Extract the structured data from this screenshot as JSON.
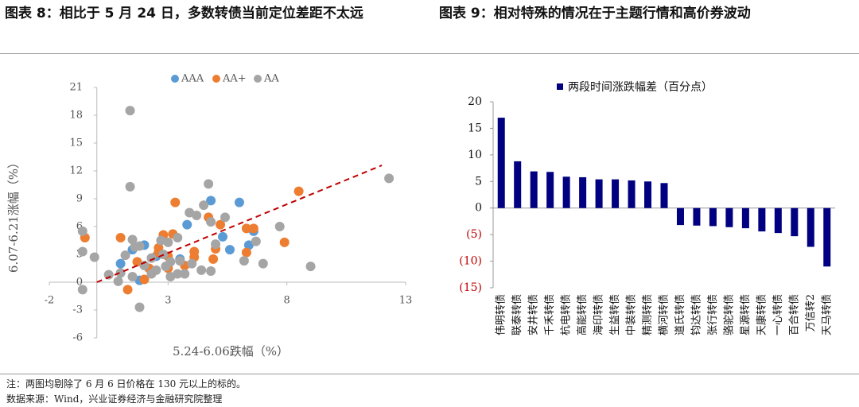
{
  "chart_data": [
    {
      "type": "scatter",
      "title": "图表 8：相比于 5 月 24 日，多数转债当前定位差距不太远",
      "x_label": "5.24-6.06跌幅（%）",
      "y_label": "6.07-6.21涨幅（%）",
      "xlim": [
        -2,
        13
      ],
      "xticks": [
        -2,
        3,
        8,
        13
      ],
      "ylim": [
        -6,
        21
      ],
      "yticks": [
        -6,
        -3,
        0,
        3,
        6,
        9,
        12,
        15,
        18,
        21
      ],
      "legend": "top",
      "series": [
        {
          "name": "AAA",
          "color": "#5b9bd5",
          "x": [
            4.8,
            6.0,
            3.8,
            5.3,
            6.6,
            6.4,
            2.0,
            1.0,
            1.8,
            3.5,
            2.5,
            1.5,
            5.6
          ],
          "values": [
            8.8,
            8.6,
            6.2,
            4.9,
            5.5,
            4.0,
            4.0,
            2.0,
            0.2,
            2.5,
            2.8,
            3.5,
            3.5
          ]
        },
        {
          "name": "AA+",
          "color": "#ed7d31",
          "x": [
            8.5,
            3.3,
            4.7,
            5.2,
            6.3,
            6.6,
            7.9,
            3.2,
            2.8,
            1.0,
            -0.5,
            4.1,
            5.0,
            6.3,
            2.6,
            3.0,
            4.1,
            4.9,
            2.2,
            1.3,
            2.0,
            3.0,
            1.7,
            3.7,
            2.6
          ],
          "values": [
            9.8,
            8.6,
            7.0,
            6.2,
            5.8,
            5.8,
            4.3,
            5.2,
            5.1,
            4.8,
            4.8,
            3.3,
            3.6,
            3.2,
            3.2,
            2.8,
            2.7,
            2.5,
            1.5,
            -0.8,
            0.3,
            1.5,
            2.2,
            1.8,
            3.7
          ]
        },
        {
          "name": "AA",
          "color": "#a5a5a5",
          "x": [
            1.4,
            12.3,
            1.4,
            4.7,
            4.5,
            3.9,
            4.2,
            4.8,
            5.4,
            7.7,
            6.7,
            -0.6,
            1.5,
            1.8,
            2.7,
            3.0,
            3.4,
            -0.1,
            -0.6,
            1.6,
            2.3,
            2.8,
            3.1,
            3.5,
            4.0,
            4.4,
            4.8,
            5.0,
            6.2,
            7.0,
            9.0,
            1.0,
            1.5,
            2.0,
            2.5,
            3.1,
            3.4,
            0.9,
            1.8,
            -0.6,
            0.5,
            2.3,
            2.9,
            3.7,
            1.2
          ],
          "values": [
            18.5,
            11.2,
            10.3,
            10.6,
            8.3,
            7.5,
            7.2,
            6.5,
            7.0,
            6.0,
            4.4,
            5.5,
            4.6,
            3.9,
            4.5,
            4.3,
            4.8,
            2.7,
            3.3,
            3.8,
            2.6,
            3.0,
            2.2,
            2.3,
            2.0,
            1.3,
            1.2,
            4.1,
            2.3,
            2.0,
            1.7,
            1.0,
            0.6,
            1.8,
            1.3,
            0.6,
            0.9,
            0.1,
            -2.7,
            -0.8,
            0.8,
            0.9,
            1.7,
            0.9,
            2.9
          ]
        }
      ],
      "trendline": {
        "color": "#c00000",
        "x": [
          0,
          12
        ],
        "values": [
          0,
          12.6
        ]
      }
    },
    {
      "type": "bar",
      "title": "图表 9：相对特殊的情况在于主题行情和高价券波动",
      "legend": "top",
      "categories": [
        "伟明转债",
        "联泰转债",
        "安井转债",
        "千禾转债",
        "杭电转债",
        "高能转债",
        "海印转债",
        "生益转债",
        "中装转债",
        "精测转债",
        "横河转债",
        "道氏转债",
        "钧达转债",
        "张行转债",
        "骆驼转债",
        "星源转债",
        "天康转债",
        "一心转债",
        "百合转债",
        "万信转2",
        "天马转债"
      ],
      "series": [
        {
          "name": "两段时间涨跌幅差（百分点）",
          "color": "#000080",
          "values": [
            17.0,
            8.8,
            6.9,
            6.8,
            5.9,
            5.8,
            5.4,
            5.4,
            5.2,
            5.0,
            4.7,
            -3.2,
            -3.3,
            -3.4,
            -3.6,
            -3.8,
            -4.4,
            -4.7,
            -5.3,
            -7.3,
            -11.0
          ]
        }
      ],
      "ylim": [
        -15,
        20
      ],
      "yticks": [
        {
          "value": -15,
          "label": "(15)"
        },
        {
          "value": -10,
          "label": "(10)"
        },
        {
          "value": -5,
          "label": "(5)"
        },
        0,
        5,
        10,
        15,
        20
      ],
      "negative_tick_color": "#c00000"
    }
  ],
  "note": "注：两图均剔除了 6 月 6 日价格在 130 元以上的标的。",
  "source": "数据来源：Wind，兴业证券经济与金融研究院整理"
}
